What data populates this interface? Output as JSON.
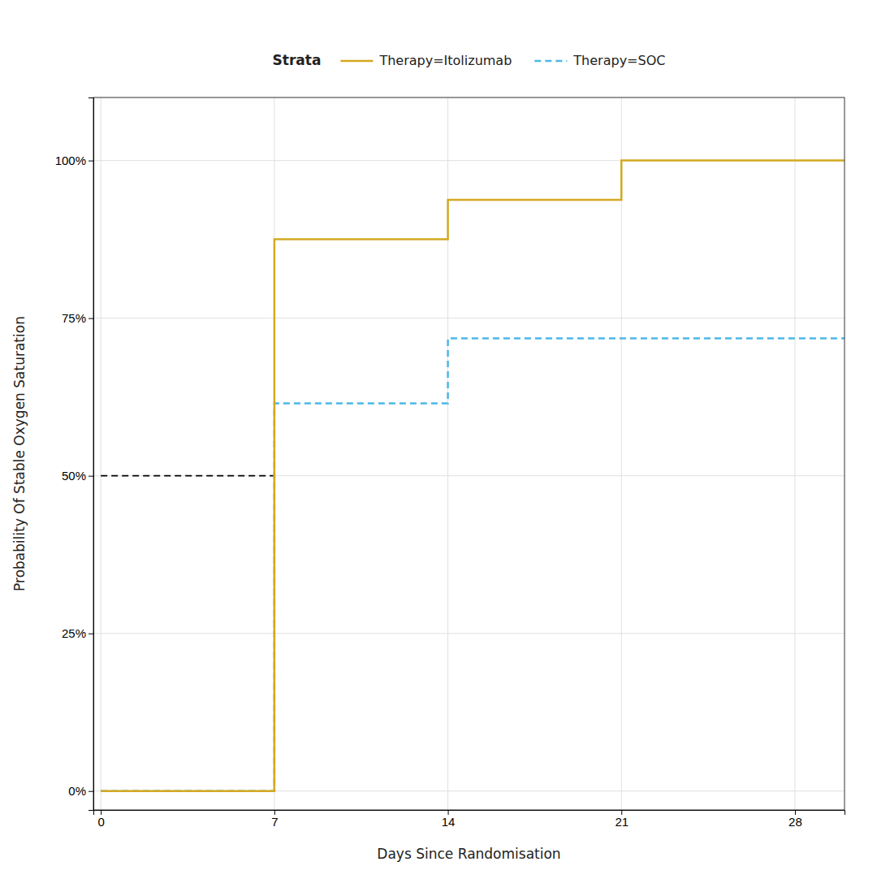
{
  "chart_data": {
    "type": "line",
    "xlabel": "Days Since Randomisation",
    "ylabel": "Probability Of Stable Oxygen Saturation",
    "legend_title": "Strata",
    "legend": "top",
    "grid": true,
    "series": [
      {
        "name": "Therapy=Itolizumab",
        "color": "#D4A820",
        "line_style": "solid",
        "x": [
          0,
          7,
          7,
          14,
          14,
          21,
          21,
          30
        ],
        "values": [
          0.0,
          0.0,
          0.875,
          0.875,
          0.9375,
          0.9375,
          1.0,
          1.0
        ]
      },
      {
        "name": "Therapy=SOC",
        "color": "#4BB8E8",
        "line_style": "dashed",
        "x": [
          0,
          7,
          7,
          14,
          14,
          30
        ],
        "values": [
          0.0,
          0.0,
          0.615,
          0.615,
          0.718,
          0.718
        ]
      },
      {
        "color": "#000000",
        "line_style": "dashed",
        "x": [
          0,
          7
        ],
        "values": [
          0.5,
          0.5
        ]
      },
      {
        "color": "#000000",
        "line_style": "dashed",
        "x": [
          7,
          7
        ],
        "values": [
          0.0,
          0.5
        ]
      }
    ],
    "xlim": [
      -0.3,
      30
    ],
    "xticks": [
      0,
      7,
      14,
      21,
      28
    ],
    "ylim": [
      -0.03,
      1.1
    ],
    "yticks": [
      {
        "value": 0.0,
        "label": "0%"
      },
      {
        "value": 0.25,
        "label": "25%"
      },
      {
        "value": 0.5,
        "label": "50%"
      },
      {
        "value": 0.75,
        "label": "75%"
      },
      {
        "value": 1.0,
        "label": "100%"
      }
    ]
  }
}
